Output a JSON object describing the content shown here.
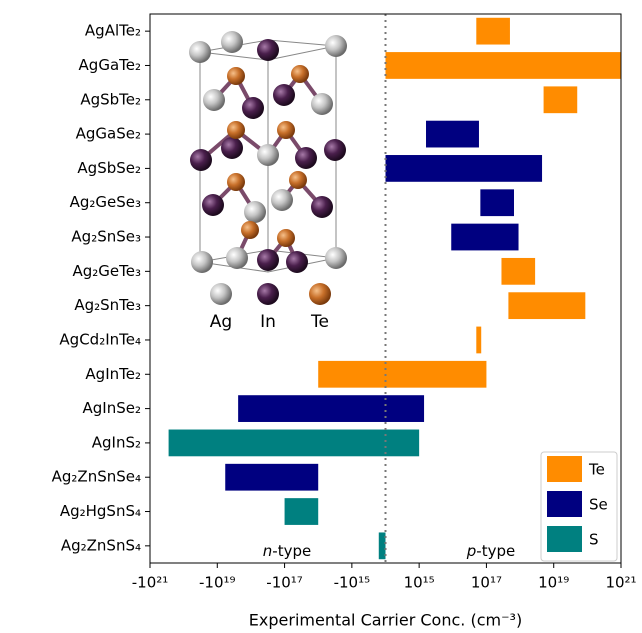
{
  "chart_data": {
    "type": "floating-barh",
    "xlabel": "Experimental Carrier Conc. (cm⁻³)",
    "categories": [
      "AgAlTe₂",
      "AgGaTe₂",
      "AgSbTe₂",
      "AgGaSe₂",
      "AgSbSe₂",
      "Ag₂GeSe₃",
      "Ag₂SnSe₃",
      "Ag₂GeTe₃",
      "Ag₂SnTe₃",
      "AgCd₂InTe₄",
      "AgInTe₂",
      "AgInSe₂",
      "AgInS₂",
      "Ag₂ZnSnSe₄",
      "Ag₂HgSnS₄",
      "Ag₂ZnSnS₄"
    ],
    "series": [
      {
        "name": "Te",
        "color": "#ff8c00",
        "values": [
          [
            5e+16,
            5e+17
          ],
          [
            0,
            1e+21
          ],
          [
            5e+18,
            5e+19
          ],
          null,
          null,
          null,
          null,
          [
            2.8e+17,
            2.8e+18
          ],
          [
            4.5e+17,
            8.7e+19
          ],
          [
            5e+16,
            7e+16
          ],
          [
            -1e+16,
            1e+17
          ],
          null,
          null,
          null,
          null,
          null
        ]
      },
      {
        "name": "Se",
        "color": "#000080",
        "values": [
          null,
          null,
          null,
          [
            1600000000000000.0,
            6e+16
          ],
          [
            0,
            4.5e+18
          ],
          [
            6.6e+16,
            6.6e+17
          ],
          [
            9000000000000000.0,
            9e+17
          ],
          null,
          null,
          null,
          null,
          [
            -2.4e+18,
            1400000000000000.0
          ],
          null,
          [
            -5.8e+18,
            -1e+16
          ],
          null,
          null
        ]
      },
      {
        "name": "S",
        "color": "#008080",
        "values": [
          null,
          null,
          null,
          null,
          null,
          null,
          null,
          null,
          null,
          null,
          null,
          null,
          [
            -2.8e+20,
            1000000000000000.0
          ],
          null,
          [
            -1e+17,
            -1e+16
          ],
          [
            -200000000000000.0,
            0
          ]
        ]
      }
    ],
    "xscale": "symlog",
    "linthresh": 1000000000000000.0,
    "xlim": [
      -1e+21,
      1e+21
    ],
    "xticks": [
      {
        "value": -1e+21,
        "label": "-10²¹"
      },
      {
        "value": -1e+19,
        "label": "-10¹⁹"
      },
      {
        "value": -1e+17,
        "label": "-10¹⁷"
      },
      {
        "value": -1000000000000000.0,
        "label": "-10¹⁵"
      },
      {
        "value": 1000000000000000.0,
        "label": "10¹⁵"
      },
      {
        "value": 1e+17,
        "label": "10¹⁷"
      },
      {
        "value": 1e+19,
        "label": "10¹⁹"
      },
      {
        "value": 1e+21,
        "label": "10²¹"
      }
    ],
    "zero_line": true,
    "legend": "lower right",
    "annotations": [
      "n-type",
      "p-type"
    ]
  },
  "inset": {
    "labels": [
      "Ag",
      "In",
      "Te"
    ]
  }
}
